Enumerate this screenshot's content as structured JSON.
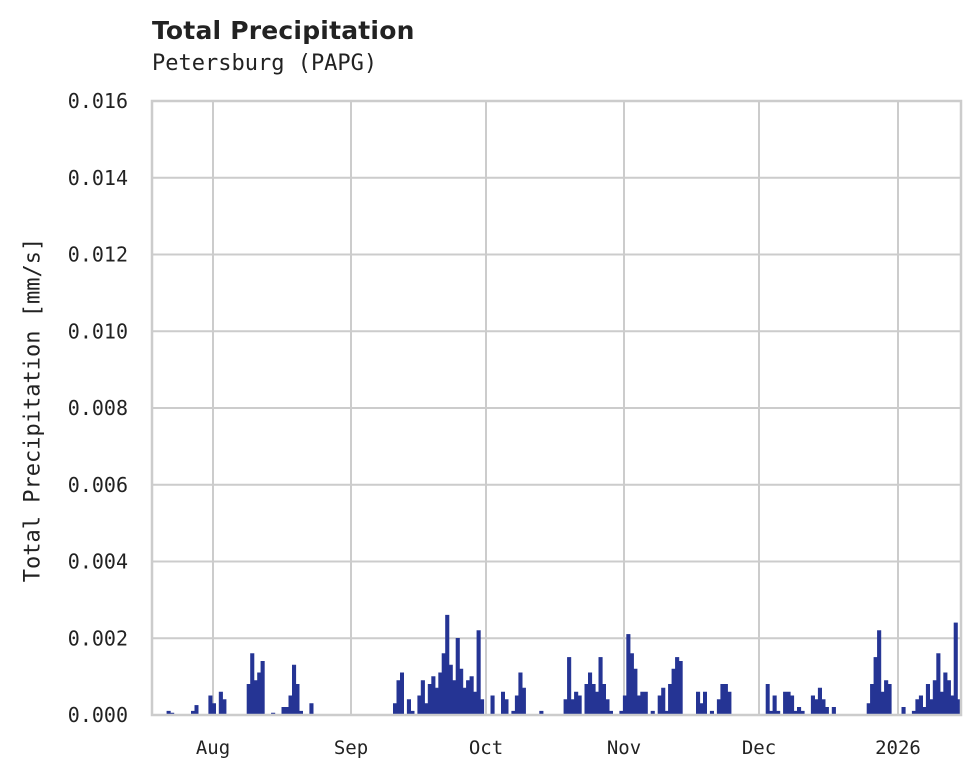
{
  "header": {
    "title": "Total Precipitation",
    "subtitle": "Petersburg (PAPG)"
  },
  "colors": {
    "bar": "#253494",
    "grid": "#cccccc",
    "text": "#222222"
  },
  "chart_data": {
    "type": "area",
    "title": "Total Precipitation",
    "subtitle": "Petersburg (PAPG)",
    "xlabel": "",
    "ylabel": "Total Precipitation [mm/s]",
    "ylim": [
      0,
      0.016
    ],
    "yticks": [
      "0.000",
      "0.002",
      "0.004",
      "0.006",
      "0.008",
      "0.010",
      "0.012",
      "0.014",
      "0.016"
    ],
    "xticks": [
      "Aug",
      "Sep",
      "Oct",
      "Nov",
      "Dec",
      "2026"
    ],
    "grid": true,
    "legend": null,
    "x_start": "2025-07-17",
    "x_step": "1 day (approx.)",
    "values": [
      0,
      0,
      0,
      0,
      0,
      0,
      0.0001,
      5e-05,
      0,
      0,
      0,
      0,
      0,
      0.0001,
      0.00025,
      0,
      0,
      0,
      0.0005,
      0.0003,
      0,
      0.0006,
      0.0004,
      0,
      0,
      0,
      0,
      0,
      0,
      0.0008,
      0.0016,
      0.0009,
      0.0011,
      0.0014,
      0,
      0,
      5e-05,
      0,
      0,
      0.0002,
      0.0002,
      0.0005,
      0.0013,
      0.0008,
      0.0001,
      0,
      0,
      0.0003,
      0,
      0,
      0,
      0,
      0,
      0,
      0,
      0,
      0,
      0,
      0,
      0,
      0,
      0,
      0,
      0,
      0,
      0,
      0,
      0,
      0,
      0,
      0,
      0.0003,
      0.0009,
      0.0011,
      0,
      0.0004,
      0.0001,
      0,
      0.0005,
      0.0009,
      0.0003,
      0.0008,
      0.001,
      0.0007,
      0.0011,
      0.0016,
      0.0026,
      0.0013,
      0.0009,
      0.002,
      0.0012,
      0.0007,
      0.0009,
      0.001,
      0.0006,
      0.0022,
      0.0004,
      0,
      0,
      0.0005,
      0,
      0,
      0.0006,
      0.0004,
      0,
      0.0001,
      0.0005,
      0.0011,
      0.0007,
      0,
      0,
      0,
      0,
      0.0001,
      0,
      0,
      0,
      0,
      0,
      0,
      0.0004,
      0.0015,
      0.0004,
      0.0006,
      0.0005,
      0,
      0.0008,
      0.0011,
      0.0008,
      0.0006,
      0.0015,
      0.0008,
      0.0004,
      0.0001,
      0,
      0,
      0.0001,
      0.0005,
      0.0021,
      0.0016,
      0.0012,
      0.0005,
      0.0006,
      0.0006,
      0,
      0.0001,
      0,
      0.0005,
      0.0007,
      0.0001,
      0.0008,
      0.0012,
      0.0015,
      0.0014,
      0,
      0,
      0,
      0,
      0.0006,
      0.0003,
      0.0006,
      0,
      0.0001,
      0,
      0.0004,
      0.0008,
      0.0008,
      0.0006,
      0,
      0,
      0,
      0,
      0,
      0,
      0,
      0,
      0,
      0,
      0.0008,
      0.0001,
      0.0005,
      0.0001,
      0,
      0.0006,
      0.0006,
      0.0005,
      0.0001,
      0.0002,
      0.0001,
      0,
      0,
      0.0005,
      0.0004,
      0.0007,
      0.0004,
      0.0002,
      0,
      0.0002,
      0,
      0,
      0,
      0,
      0,
      0,
      0,
      0,
      0,
      0.0003,
      0.0008,
      0.0015,
      0.0022,
      0.0006,
      0.0009,
      0.0008,
      0,
      0,
      0,
      0.0002,
      0,
      0,
      0.0001,
      0.0004,
      0.0005,
      0.0002,
      0.0008,
      0.0004,
      0.0009,
      0.0016,
      0.0006,
      0.0011,
      0.0009,
      0.0005,
      0.0024,
      0.0004
    ]
  }
}
